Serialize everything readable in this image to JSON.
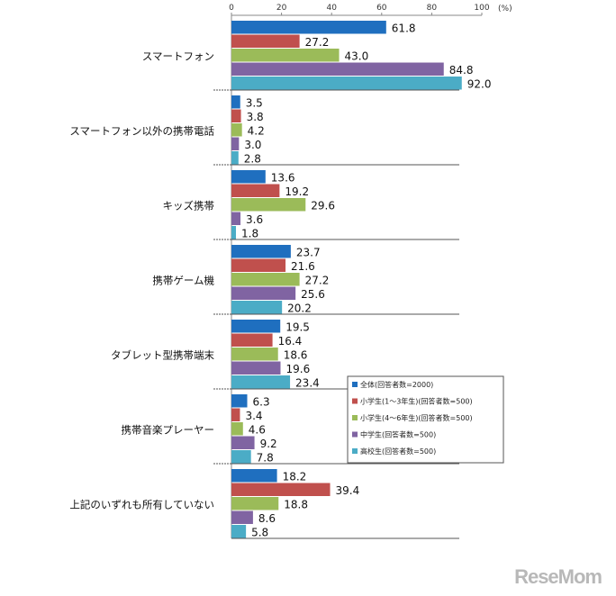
{
  "chart_data": {
    "type": "bar",
    "orientation": "horizontal",
    "unit_label": "(%)",
    "xlim": [
      0,
      100
    ],
    "xticks": [
      0,
      20,
      40,
      60,
      80,
      100
    ],
    "categories": [
      "スマートフォン",
      "スマートフォン以外の携帯電話",
      "キッズ携帯",
      "携帯ゲーム機",
      "タブレット型携帯端末",
      "携帯音楽プレーヤー",
      "上記のいずれも所有していない"
    ],
    "series": [
      {
        "name": "全体(回答者数=2000)",
        "color": "#1f6fbf",
        "values": [
          61.8,
          3.5,
          13.6,
          23.7,
          19.5,
          6.3,
          18.2
        ]
      },
      {
        "name": "小学生(1～3年生)(回答者数=500)",
        "color": "#c0504d",
        "values": [
          27.2,
          3.8,
          19.2,
          21.6,
          16.4,
          3.4,
          39.4
        ]
      },
      {
        "name": "小学生(4～6年生)(回答者数=500)",
        "color": "#9bbb59",
        "values": [
          43.0,
          4.2,
          29.6,
          27.2,
          18.6,
          4.6,
          18.8
        ]
      },
      {
        "name": "中学生(回答者数=500)",
        "color": "#8064a2",
        "values": [
          84.8,
          3.0,
          3.6,
          25.6,
          19.6,
          9.2,
          8.6
        ]
      },
      {
        "name": "高校生(回答者数=500)",
        "color": "#4bacc6",
        "values": [
          92.0,
          2.8,
          1.8,
          20.2,
          23.4,
          7.8,
          5.8
        ]
      }
    ],
    "legend_position": "right-middle"
  },
  "watermark": "ReseMom"
}
